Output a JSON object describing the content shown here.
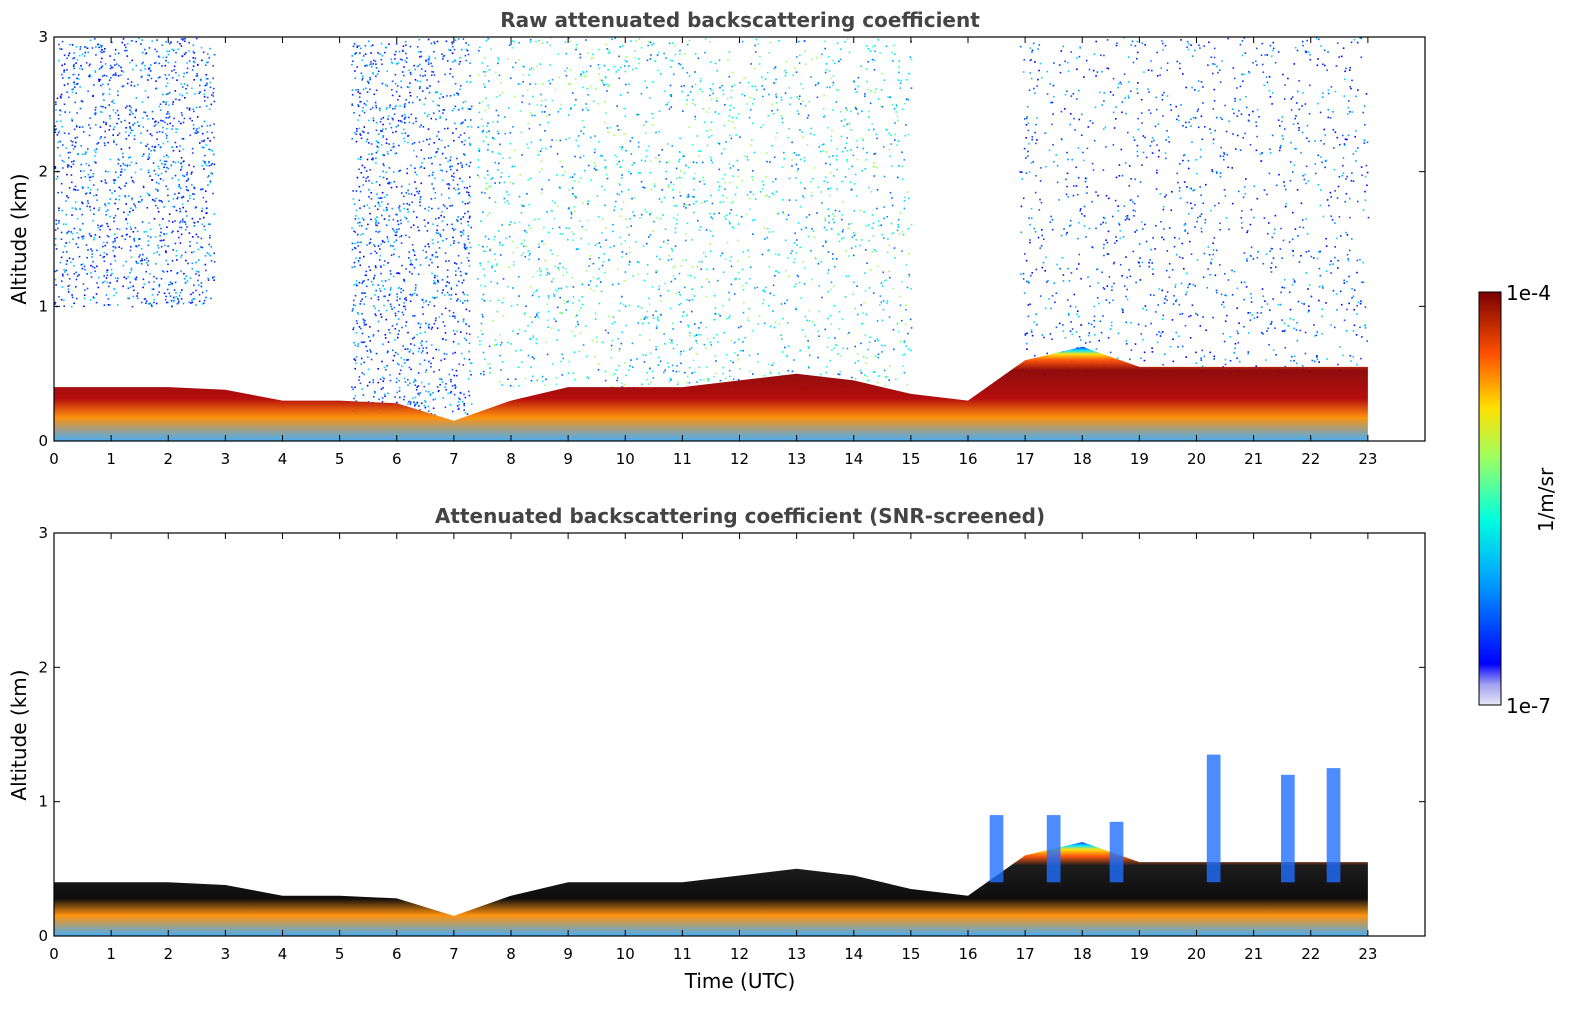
{
  "chart_data": [
    {
      "type": "heatmap",
      "title": "Raw attenuated backscattering coefficient",
      "xlabel": "",
      "ylabel": "Altitude (km)",
      "xlim": [
        0,
        24
      ],
      "ylim": [
        0,
        3
      ],
      "xticks": [
        "0",
        "1",
        "2",
        "3",
        "4",
        "5",
        "6",
        "7",
        "8",
        "9",
        "10",
        "11",
        "12",
        "13",
        "14",
        "15",
        "16",
        "17",
        "18",
        "19",
        "20",
        "21",
        "22",
        "23"
      ],
      "yticks": [
        "0",
        "1",
        "2",
        "3"
      ],
      "data_extent_hours": [
        0,
        23
      ],
      "layer_top_km": [
        0.4,
        0.4,
        0.4,
        0.38,
        0.3,
        0.3,
        0.28,
        0.15,
        0.3,
        0.4,
        0.4,
        0.4,
        0.45,
        0.5,
        0.45,
        0.35,
        0.3,
        0.6,
        0.7,
        0.55,
        0.55,
        0.55,
        0.55,
        0.55
      ],
      "noise_regions": [
        {
          "hours": [
            0,
            2.8
          ],
          "alt_km": [
            1.0,
            3.0
          ],
          "level": "low"
        },
        {
          "hours": [
            5.2,
            7.3
          ],
          "alt_km": [
            0.2,
            3.0
          ],
          "level": "low"
        },
        {
          "hours": [
            7.4,
            15
          ],
          "alt_km": [
            0.4,
            3.0
          ],
          "level": "medium"
        },
        {
          "hours": [
            16.9,
            23
          ],
          "alt_km": [
            0.5,
            3.0
          ],
          "level": "low"
        }
      ],
      "grid": false
    },
    {
      "type": "heatmap",
      "title": "Attenuated backscattering coefficient (SNR-screened)",
      "xlabel": "Time (UTC)",
      "ylabel": "Altitude (km)",
      "xlim": [
        0,
        24
      ],
      "ylim": [
        0,
        3
      ],
      "xticks": [
        "0",
        "1",
        "2",
        "3",
        "4",
        "5",
        "6",
        "7",
        "8",
        "9",
        "10",
        "11",
        "12",
        "13",
        "14",
        "15",
        "16",
        "17",
        "18",
        "19",
        "20",
        "21",
        "22",
        "23"
      ],
      "yticks": [
        "0",
        "1",
        "2",
        "3"
      ],
      "data_extent_hours": [
        0,
        23
      ],
      "layer_top_km": [
        0.4,
        0.4,
        0.4,
        0.38,
        0.3,
        0.3,
        0.28,
        0.15,
        0.3,
        0.4,
        0.4,
        0.4,
        0.45,
        0.5,
        0.45,
        0.35,
        0.3,
        0.6,
        0.7,
        0.55,
        0.55,
        0.55,
        0.55,
        0.55
      ],
      "cloud_spikes_hours_km": [
        [
          16.5,
          0.9
        ],
        [
          17.5,
          0.9
        ],
        [
          18.6,
          0.85
        ],
        [
          20.3,
          1.35
        ],
        [
          21.6,
          1.2
        ],
        [
          22.4,
          1.25
        ]
      ],
      "grid": false
    }
  ],
  "colorbar": {
    "label": "1/m/sr",
    "max_label": "1e-4",
    "min_label": "1e-7",
    "colormap": "jet"
  },
  "colors": {
    "title": "#444444",
    "layer_dark": "#8b0000",
    "layer_black": "#000000"
  }
}
